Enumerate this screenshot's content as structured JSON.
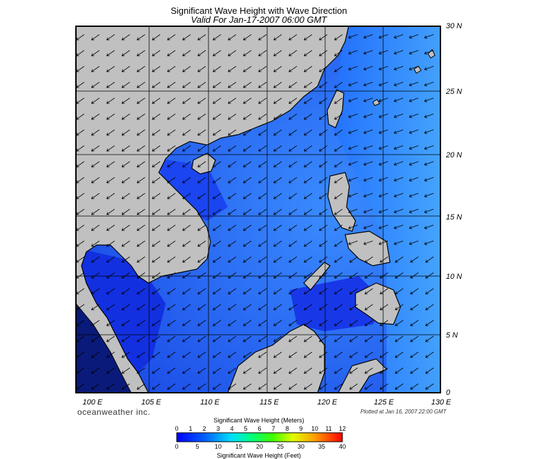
{
  "title": "Significant Wave Height with Wave Direction",
  "subtitle": "Valid For Jan-17-2007 06:00 GMT",
  "lat_labels": [
    "30 N",
    "25 N",
    "20 N",
    "15 N",
    "10 N",
    "5 N",
    "0"
  ],
  "lon_labels": [
    "100 E",
    "105 E",
    "110 E",
    "115 E",
    "120 E",
    "125 E",
    "130 E"
  ],
  "brand": "oceanweather inc.",
  "plotted": "Plotted at Jan 16, 2007 22:00 GMT",
  "colorbar": {
    "title_meters": "Significant Wave Height (Meters)",
    "title_feet": "Significant Wave Height (Feet)",
    "meter_ticks": [
      "0",
      "1",
      "2",
      "3",
      "4",
      "5",
      "6",
      "7",
      "8",
      "9",
      "10",
      "11",
      "12"
    ],
    "feet_ticks": [
      "0",
      "5",
      "10",
      "15",
      "20",
      "25",
      "30",
      "35",
      "40"
    ]
  },
  "colors": {
    "land": "#c0c0c0",
    "water_low": "#1e50ff",
    "water_high": "#00e0ff"
  }
}
